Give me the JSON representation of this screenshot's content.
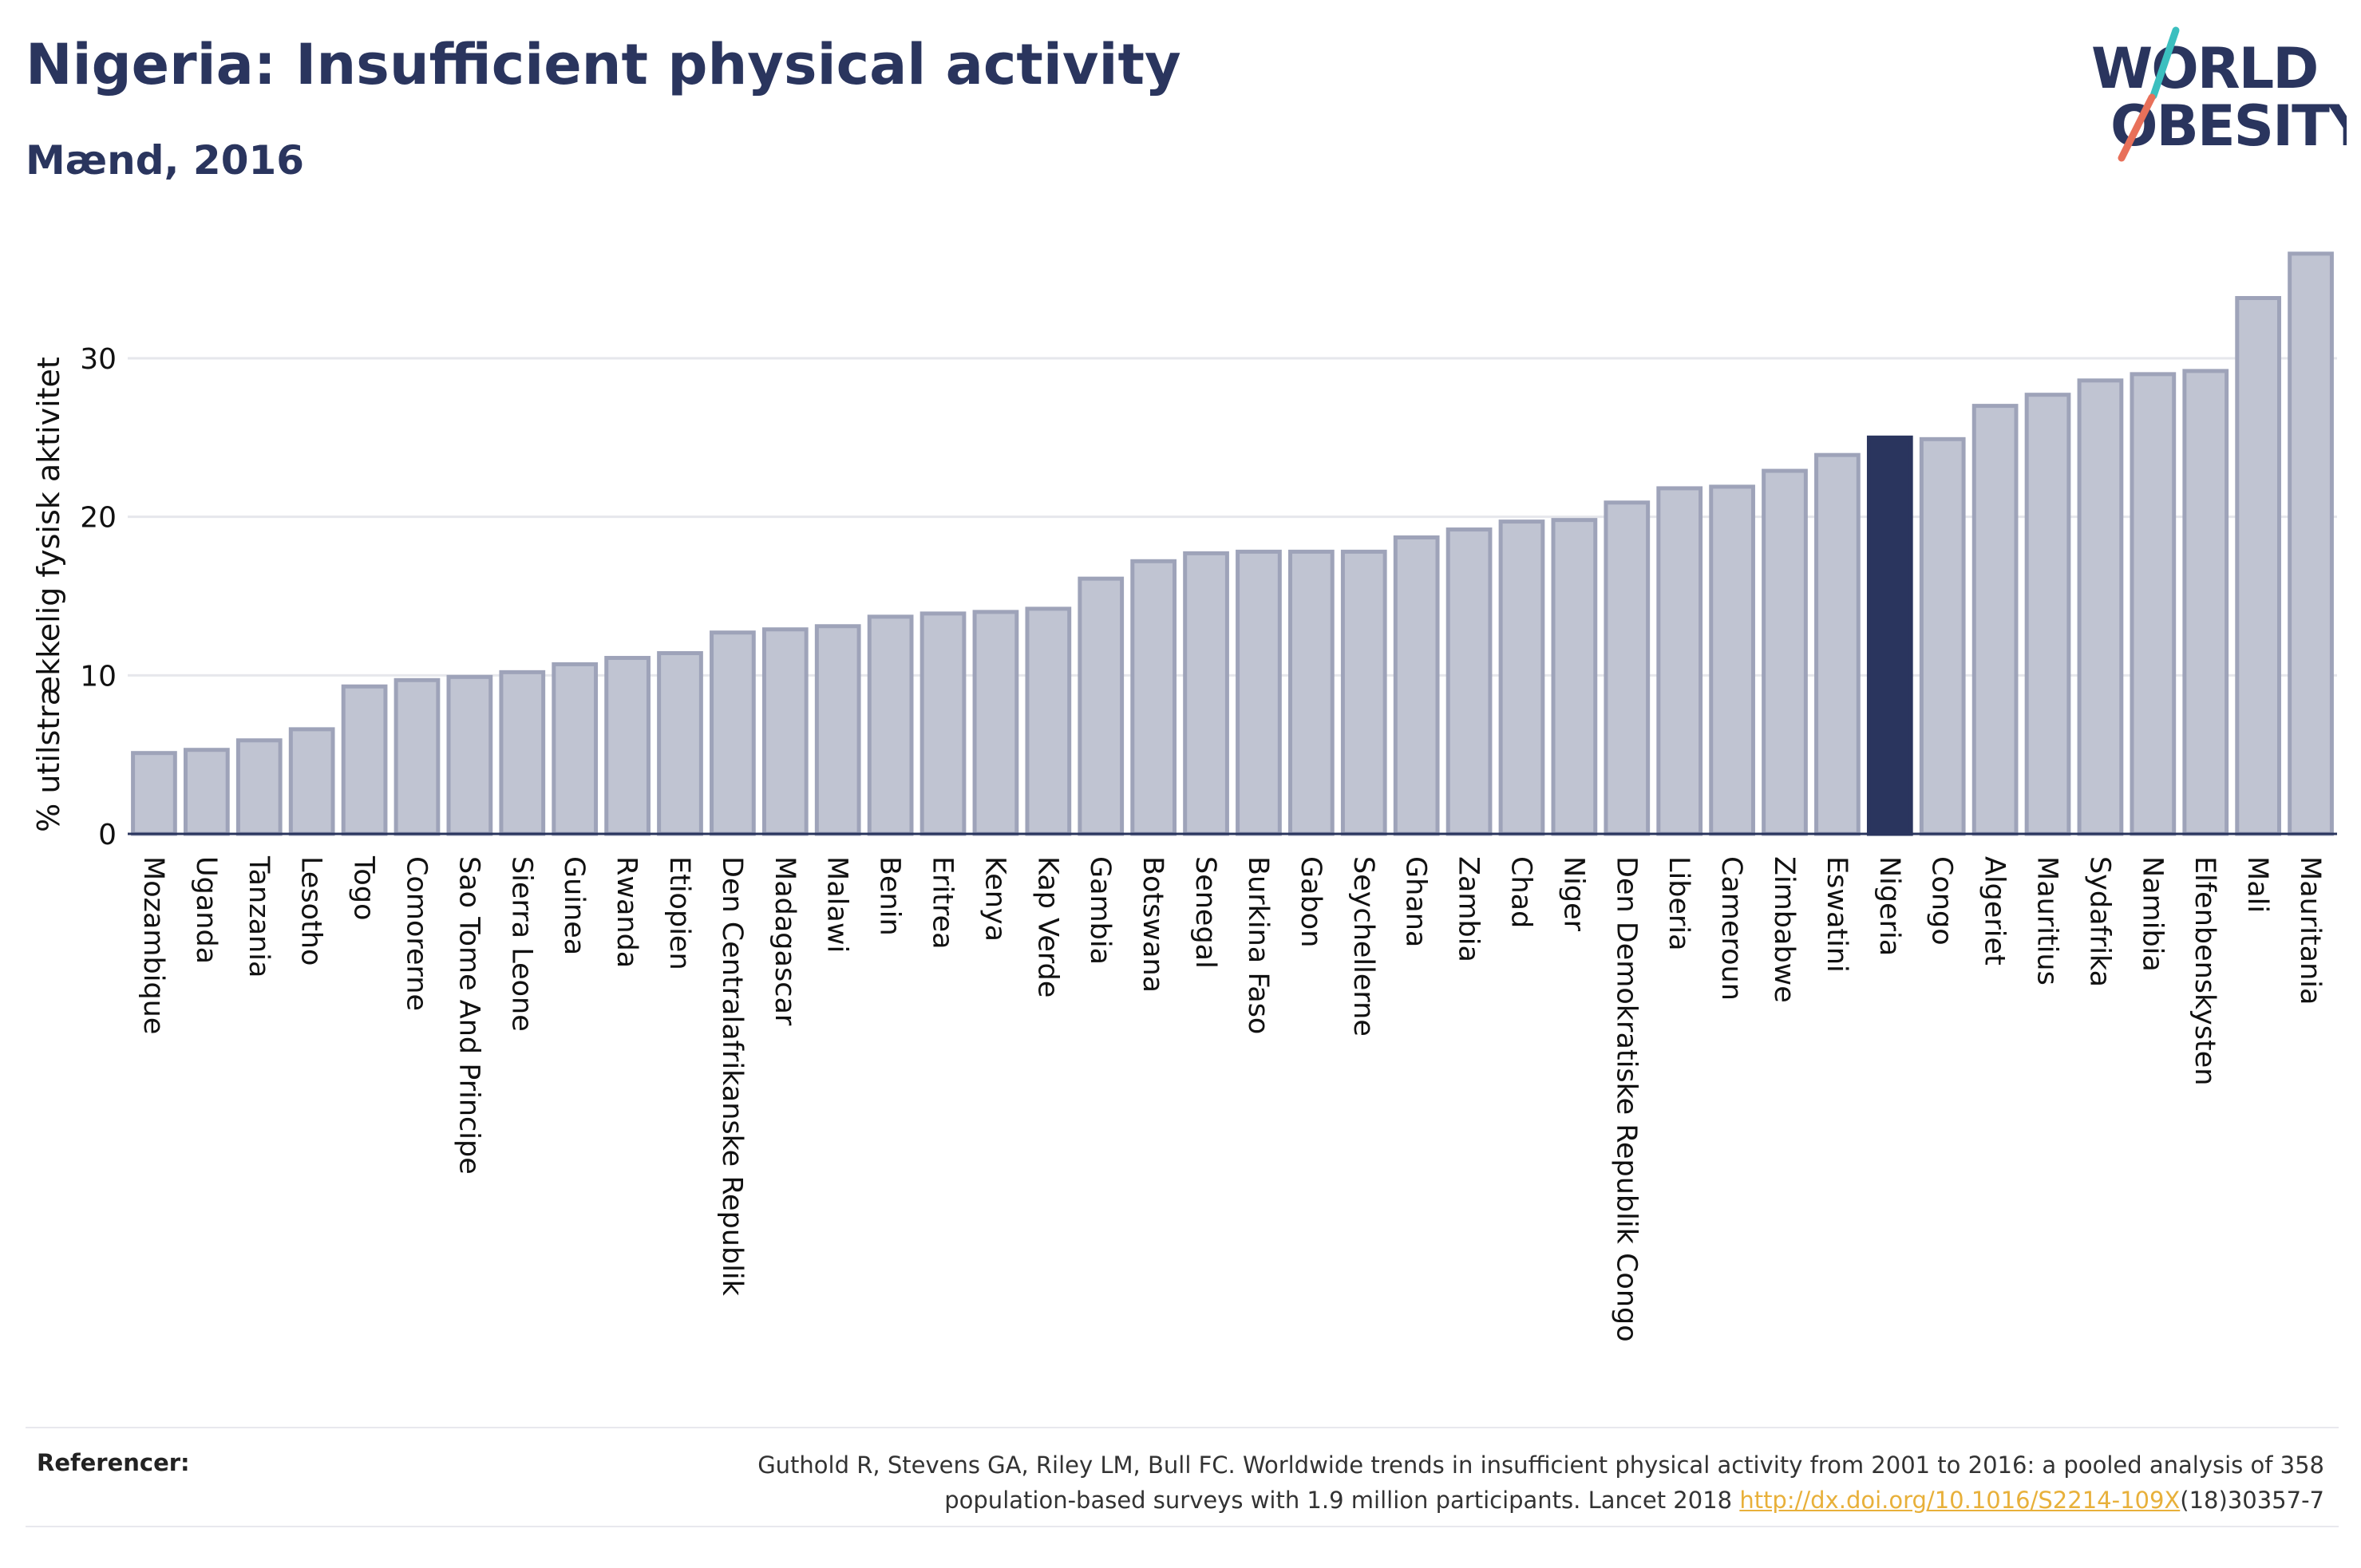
{
  "header": {
    "title": "Nigeria: Insufficient physical activity",
    "subtitle": "Mænd, 2016"
  },
  "logo": {
    "line1": "WORLD",
    "line2": "OBESITY",
    "colors": {
      "text": "#2a355e",
      "teal": "#3bbfbf",
      "coral": "#e8705a"
    }
  },
  "chart_data": {
    "type": "bar",
    "title": "Nigeria: Insufficient physical activity",
    "subtitle": "Mænd, 2016",
    "xlabel": "",
    "ylabel": "% utilstrækkelig fysisk aktivitet",
    "ylim": [
      0,
      37.5
    ],
    "yticks": [
      0,
      10,
      20,
      30
    ],
    "grid": true,
    "highlight": "Nigeria",
    "colors": {
      "bar": "#c0c4d2",
      "bar_border": "#9ea3b9",
      "highlight": "#2a355e",
      "axis": "#2a355e",
      "grid": "#e6e7ec"
    },
    "categories": [
      "Mozambique",
      "Uganda",
      "Tanzania",
      "Lesotho",
      "Togo",
      "Comorerne",
      "Sao Tome And Principe",
      "Sierra Leone",
      "Guinea",
      "Rwanda",
      "Etiopien",
      "Den Centralafrikanske Republik",
      "Madagascar",
      "Malawi",
      "Benin",
      "Eritrea",
      "Kenya",
      "Kap Verde",
      "Gambia",
      "Botswana",
      "Senegal",
      "Burkina Faso",
      "Gabon",
      "Seychellerne",
      "Ghana",
      "Zambia",
      "Chad",
      "Niger",
      "Den Demokratiske Republik Congo",
      "Liberia",
      "Cameroun",
      "Zimbabwe",
      "Eswatini",
      "Nigeria",
      "Congo",
      "Algeriet",
      "Mauritius",
      "Sydafrika",
      "Namibia",
      "Elfenbenskysten",
      "Mali",
      "Mauritania"
    ],
    "values": [
      5.1,
      5.3,
      5.9,
      6.6,
      9.3,
      9.7,
      9.9,
      10.2,
      10.7,
      11.1,
      11.4,
      12.7,
      12.9,
      13.1,
      13.7,
      13.9,
      14.0,
      14.2,
      16.1,
      17.2,
      17.7,
      17.8,
      17.8,
      17.8,
      18.7,
      19.2,
      19.7,
      19.8,
      20.9,
      21.8,
      21.9,
      22.9,
      23.9,
      25.0,
      24.9,
      27.0,
      27.7,
      28.6,
      29.0,
      29.2,
      33.8,
      36.6
    ]
  },
  "footer": {
    "ref_label": "Referencer:",
    "ref_text_1": "Guthold R, Stevens GA, Riley LM, Bull FC. Worldwide trends in insufficient physical activity from 2001 to 2016: a pooled analysis of 358",
    "ref_text_2a": "population-based surveys with 1.9 million participants. Lancet 2018 ",
    "ref_link": "http://dx.doi.org/10.1016/S2214-109X",
    "ref_text_2b": "(18)30357-7"
  }
}
